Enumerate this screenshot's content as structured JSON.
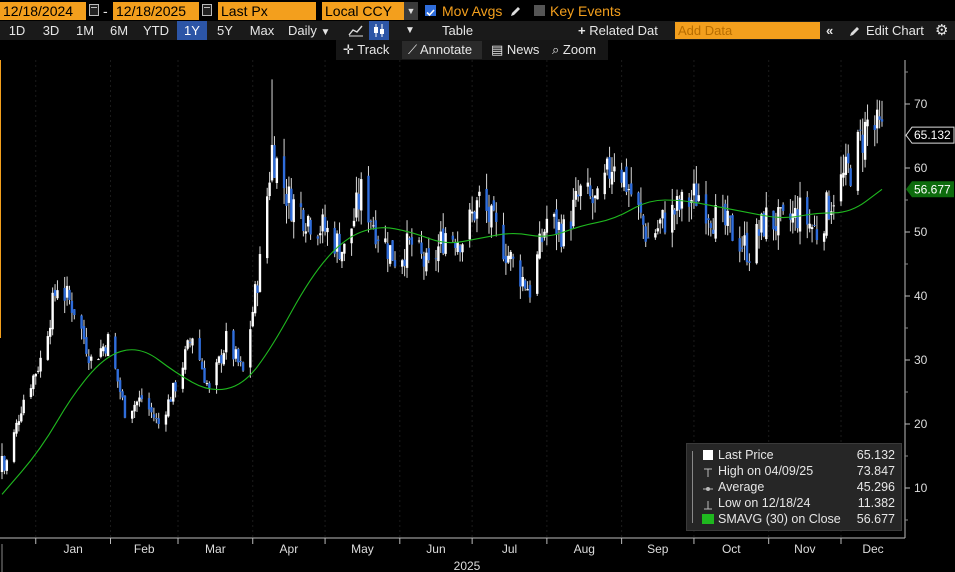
{
  "toolbar": {
    "start_date": "12/18/2024",
    "date_separator": "-",
    "end_date": "12/18/2025",
    "field": "Last Px",
    "currency": "Local CCY",
    "mov_avgs_label": "Mov Avgs",
    "key_events_label": "Key Events",
    "periods": [
      "1D",
      "3D",
      "1M",
      "6M",
      "YTD",
      "1Y",
      "5Y",
      "Max"
    ],
    "active_period": "1Y",
    "frequency": "Daily",
    "table_label": "Table",
    "related_data_label": "Related Dat",
    "add_data_placeholder": "Add Data",
    "edit_chart_label": "Edit Chart",
    "tools": [
      "Track",
      "Annotate",
      "News",
      "Zoom"
    ]
  },
  "chart_data": {
    "type": "candlestick",
    "x_axis": {
      "months": [
        "Jan",
        "Feb",
        "Mar",
        "Apr",
        "May",
        "Jun",
        "Jul",
        "Aug",
        "Sep",
        "Oct",
        "Nov",
        "Dec"
      ],
      "year_label": "2025"
    },
    "y_axis": {
      "ticks": [
        10,
        20,
        30,
        40,
        50,
        60,
        70
      ],
      "range": [
        3,
        80
      ],
      "side": "right"
    },
    "price_series_weekly_close": [
      {
        "date": "2024-12-18",
        "close": 11.4
      },
      {
        "date": "2024-12-27",
        "close": 24.0
      },
      {
        "date": "2025-01-03",
        "close": 30.0
      },
      {
        "date": "2025-01-10",
        "close": 42.0
      },
      {
        "date": "2025-01-17",
        "close": 38.0
      },
      {
        "date": "2025-01-24",
        "close": 30.0
      },
      {
        "date": "2025-01-31",
        "close": 33.0
      },
      {
        "date": "2025-02-07",
        "close": 22.0
      },
      {
        "date": "2025-02-14",
        "close": 24.0
      },
      {
        "date": "2025-02-21",
        "close": 20.0
      },
      {
        "date": "2025-02-28",
        "close": 26.0
      },
      {
        "date": "2025-03-07",
        "close": 34.0
      },
      {
        "date": "2025-03-14",
        "close": 25.0
      },
      {
        "date": "2025-03-21",
        "close": 33.0
      },
      {
        "date": "2025-03-28",
        "close": 28.0
      },
      {
        "date": "2025-04-04",
        "close": 45.0
      },
      {
        "date": "2025-04-09",
        "close": 63.0
      },
      {
        "date": "2025-04-16",
        "close": 55.0
      },
      {
        "date": "2025-04-25",
        "close": 52.0
      },
      {
        "date": "2025-05-02",
        "close": 50.0
      },
      {
        "date": "2025-05-09",
        "close": 47.0
      },
      {
        "date": "2025-05-16",
        "close": 56.0
      },
      {
        "date": "2025-05-23",
        "close": 50.0
      },
      {
        "date": "2025-05-30",
        "close": 46.0
      },
      {
        "date": "2025-06-06",
        "close": 48.0
      },
      {
        "date": "2025-06-13",
        "close": 44.0
      },
      {
        "date": "2025-06-20",
        "close": 50.0
      },
      {
        "date": "2025-06-27",
        "close": 49.0
      },
      {
        "date": "2025-07-04",
        "close": 55.0
      },
      {
        "date": "2025-07-11",
        "close": 50.0
      },
      {
        "date": "2025-07-18",
        "close": 45.0
      },
      {
        "date": "2025-07-25",
        "close": 41.0
      },
      {
        "date": "2025-08-01",
        "close": 52.0
      },
      {
        "date": "2025-08-08",
        "close": 50.0
      },
      {
        "date": "2025-08-15",
        "close": 56.0
      },
      {
        "date": "2025-08-22",
        "close": 54.0
      },
      {
        "date": "2025-08-29",
        "close": 62.0
      },
      {
        "date": "2025-09-05",
        "close": 56.0
      },
      {
        "date": "2025-09-12",
        "close": 49.0
      },
      {
        "date": "2025-09-19",
        "close": 52.0
      },
      {
        "date": "2025-09-26",
        "close": 54.0
      },
      {
        "date": "2025-10-03",
        "close": 56.0
      },
      {
        "date": "2025-10-10",
        "close": 52.0
      },
      {
        "date": "2025-10-17",
        "close": 50.0
      },
      {
        "date": "2025-10-24",
        "close": 47.0
      },
      {
        "date": "2025-10-31",
        "close": 52.0
      },
      {
        "date": "2025-11-07",
        "close": 51.0
      },
      {
        "date": "2025-11-14",
        "close": 53.0
      },
      {
        "date": "2025-11-21",
        "close": 50.0
      },
      {
        "date": "2025-11-28",
        "close": 56.0
      },
      {
        "date": "2025-12-05",
        "close": 60.0
      },
      {
        "date": "2025-12-12",
        "close": 67.0
      },
      {
        "date": "2025-12-18",
        "close": 65.1
      }
    ],
    "sma_series": [
      {
        "date": "2024-12-18",
        "value": 9.0
      },
      {
        "date": "2025-01-03",
        "value": 16.0
      },
      {
        "date": "2025-01-17",
        "value": 25.0
      },
      {
        "date": "2025-01-31",
        "value": 31.0
      },
      {
        "date": "2025-02-14",
        "value": 32.0
      },
      {
        "date": "2025-02-28",
        "value": 28.0
      },
      {
        "date": "2025-03-14",
        "value": 25.0
      },
      {
        "date": "2025-03-28",
        "value": 26.0
      },
      {
        "date": "2025-04-09",
        "value": 32.0
      },
      {
        "date": "2025-04-25",
        "value": 43.0
      },
      {
        "date": "2025-05-09",
        "value": 49.0
      },
      {
        "date": "2025-05-23",
        "value": 51.0
      },
      {
        "date": "2025-06-06",
        "value": 50.0
      },
      {
        "date": "2025-06-20",
        "value": 48.0
      },
      {
        "date": "2025-07-04",
        "value": 49.0
      },
      {
        "date": "2025-07-18",
        "value": 50.0
      },
      {
        "date": "2025-08-01",
        "value": 49.0
      },
      {
        "date": "2025-08-15",
        "value": 51.0
      },
      {
        "date": "2025-08-29",
        "value": 52.0
      },
      {
        "date": "2025-09-12",
        "value": 55.0
      },
      {
        "date": "2025-09-26",
        "value": 55.0
      },
      {
        "date": "2025-10-10",
        "value": 54.0
      },
      {
        "date": "2025-10-24",
        "value": 53.0
      },
      {
        "date": "2025-11-07",
        "value": 52.0
      },
      {
        "date": "2025-11-21",
        "value": 53.0
      },
      {
        "date": "2025-12-05",
        "value": 53.0
      },
      {
        "date": "2025-12-18",
        "value": 56.677
      }
    ],
    "last_price_tag": "65.132",
    "sma_tag": "56.677",
    "high_point": {
      "date": "2025-04-09",
      "value": 73.847
    },
    "low_point": {
      "date": "2024-12-18",
      "value": 11.382
    },
    "colors": {
      "up": "#ffffff",
      "down": "#2f6ddb",
      "sma": "#1fb81f",
      "accent": "#f39f1d",
      "background": "#000000"
    }
  },
  "legend": {
    "rows": [
      {
        "name": "Last Price",
        "value": "65.132"
      },
      {
        "name": "High on 04/09/25",
        "value": "73.847"
      },
      {
        "name": "Average",
        "value": "45.296"
      },
      {
        "name": "Low on 12/18/24",
        "value": "11.382"
      },
      {
        "name": "SMAVG (30)  on Close",
        "value": "56.677"
      }
    ]
  }
}
